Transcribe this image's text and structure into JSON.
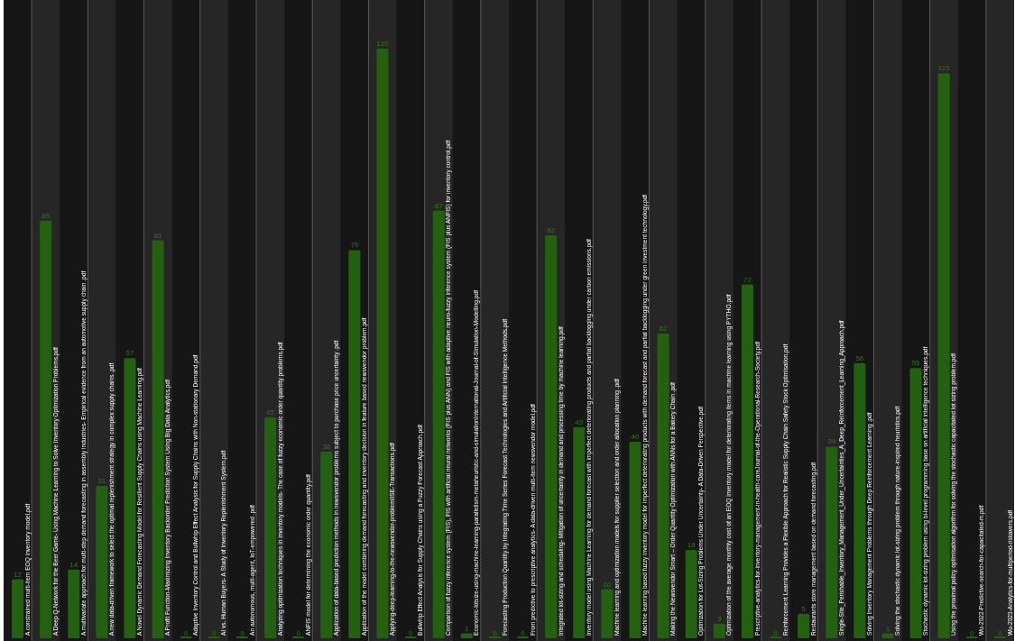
{
  "chart_data": {
    "type": "bar",
    "categories": [
      "A constrained multi-item EOQ inventory model.pdf",
      "A Deep Q-Network for the Beer Game- Using Machine Learning to Solve Inventory Optimization Problems.pdf",
      "A multivariate approach for multi-step demand forecasting in assembly industries- Empirical evidence from an automotive supply chain .pdf",
      "A new data-driven framework to select the optimal replenishment strategy in complex supply chains .pdf",
      "A Novel Dynamic Demand Forecasting Model for Resilient Supply Chains using Machine Learning.pdf",
      "A Profit Function-Maximizing Inventory Backorder Prediction System Using Big Data Analytics.pdf",
      "Adaptive Inventory Control and Bullwhip Effect Analysis for Supply Chains with Non-stationary Demand.pdf",
      "AI vs. Human Buyers- A Study of Inventory Replenishment System.pdf",
      "An autonomous, multi-agent, IoT-empowered .pdf",
      "Analyzing optimization techniques in inventory models- The case of fuzzy economic order quantity problems.pdf",
      "ANFIS model for determining the economic order quantity.pdf",
      "Application of data-based prediction methods in newsvendor problems subject to purchase price uncertainty .pdf",
      "Application of the model combining demand forecasting and inventory decision in feature based newsvendor problem.pdf",
      "Applying-deep-learning-to-the-newsvendor-problemIISE-Transactions.pdf",
      "Bullwhip Effect Analysis for Supply Chains using a Fuzzy Forecast Approach.pdf",
      "Comparison of fuzzy inference system (FIS), FIS with artificial neural networks (FIS plus ANN) and FIS with adaptive neuro-fuzzy inference system (FIS plus ANFIS) for inventory control.pdf",
      "Economic-lotsize-using-machine-learning-parallelism-metaheuristic-and-simulationInternational-Journal-of-Simulation-Modelling.pdf",
      "Forecasting Production Quantity by Integrating Time Series Forecast Technologies and Artificial Intelligence Methods.pdf",
      "From predictive to prescriptive analytics- A data-driven multi-item newsvendor model.pdf",
      "Integrated lot-sizing and scheduling- Mitigation of uncertainty in demand and processing time by machine learning.pdf",
      "Inventory model using Machine Learning for demand forecast with imperfect deteriorating products and partial backlogging under carbon emissions.pdf",
      "Machine learning and optimization models for supplier selection and order allocation planning .pdf",
      "Machine learning based fuzzy inventory model for imperfect deteriorating products with demand forecast and partial backlogging under green investment technology.pdf",
      "Making the Newsvendor Smart – Order Quantity Optimization with ANNs for a Bakery Chain .pdf",
      "Optimization for Lot-Sizing Problems Under Uncertainty- A Data-Driven Perspective.pdf",
      "Optimization of the average monthly cost of an EOQ inventory model for deteriorating items in machine learning using PYTHO.pdf",
      "Prescriptive-analytics-for-inventory-management-in-health-careJournal-of-the-Operational-Research-Society.pdf",
      "Reinforcement Learning Provides a Flexible Approach for Realistic Supply Chain Safety Stock Optimisation.pdf",
      "Restaurants store management based on demand forecasting.pdf",
      "Single-Site_Perishable_Inventory_Management_Under_Uncertainties_A_Deep_Reinforcement_Learning_Approach.pdf",
      "Solving Inventory Management Problems through Deep Reinforcement Learning .pdf",
      "Solving the stochastic dynamic lot-sizing problem through nature-inspired heuristics.pdf",
      "Stochastic dynamic lot-sizing problem using bi-level programming base on artificial intelligence techniques.pdf",
      "Using the proximal policy optimisation algorithm for solving the stochastic capacitated lot sizing problem.pdf",
      "Wu-2022-Predictive-search-for-capacitated-m.pdf",
      "Wu-2023-Analytics-for-multiperiod-riskavers.pdf"
    ],
    "values": [
      12,
      85,
      14,
      31,
      57,
      81,
      0,
      0,
      0,
      45,
      0,
      38,
      79,
      120,
      0,
      87,
      1,
      0,
      0,
      82,
      43,
      10,
      40,
      62,
      18,
      3,
      72,
      0,
      5,
      39,
      56,
      1,
      55,
      115,
      0,
      0
    ],
    "color": "#236010",
    "data_labels": true
  }
}
